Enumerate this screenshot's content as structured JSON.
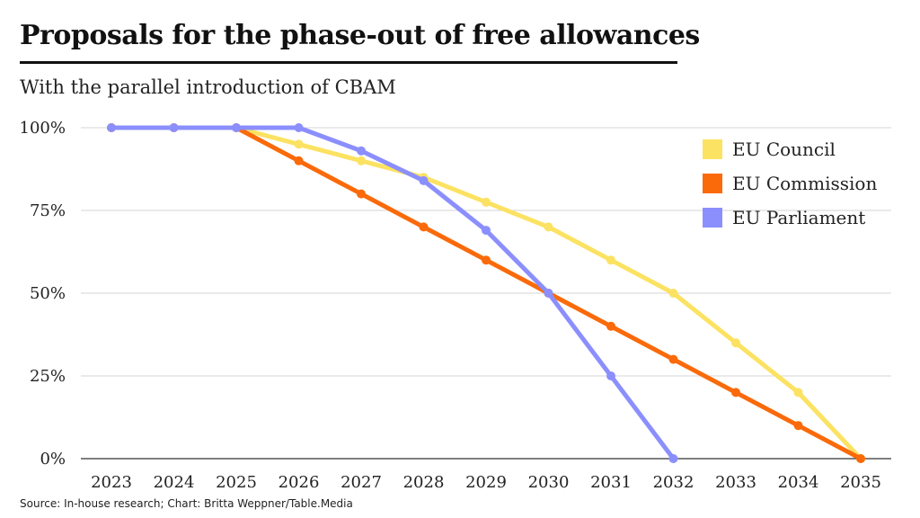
{
  "title": "Proposals for the phase-out of free allowances",
  "subtitle": "With the parallel introduction of CBAM",
  "source": "Source: In-house research; Chart: Britta Weppner/Table.Media",
  "chart_data": {
    "type": "line",
    "x": [
      "2023",
      "2024",
      "2025",
      "2026",
      "2027",
      "2028",
      "2029",
      "2030",
      "2031",
      "2032",
      "2033",
      "2034",
      "2035"
    ],
    "ylim": [
      0,
      100
    ],
    "yticks": [
      0,
      25,
      50,
      75,
      100
    ],
    "ytick_labels": [
      "0%",
      "25%",
      "50%",
      "75%",
      "100%"
    ],
    "grid": true,
    "legend_position": "top-right",
    "series": [
      {
        "name": "EU Council",
        "color": "#fce262",
        "values": [
          100,
          100,
          100,
          95,
          90,
          85,
          77.5,
          70,
          60,
          50,
          35,
          20,
          0
        ]
      },
      {
        "name": "EU Commission",
        "color": "#fa6a0a",
        "values": [
          100,
          100,
          100,
          90,
          80,
          70,
          60,
          50,
          40,
          30,
          20,
          10,
          0
        ]
      },
      {
        "name": "EU Parliament",
        "color": "#8b8ffd",
        "values": [
          100,
          100,
          100,
          100,
          93,
          84,
          69,
          50,
          25,
          0,
          null,
          null,
          null
        ]
      }
    ]
  }
}
